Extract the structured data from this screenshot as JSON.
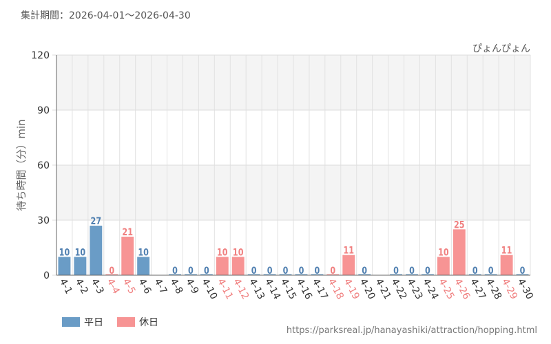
{
  "period_label": "集計期間：2026-04-01～2026-04-30",
  "source_url": "https://parksreal.jp/hanayashiki/attraction/hopping.html",
  "legend": [
    {
      "label": "平日",
      "color": "#6a9cc6"
    },
    {
      "label": "休日",
      "color": "#f79494"
    }
  ],
  "chart_data": {
    "type": "bar",
    "title": "ぴょんぴょん",
    "ylabel": "待ち時間（分）min",
    "xlabel": "",
    "ylim": [
      0,
      120
    ],
    "yticks": [
      0,
      30,
      60,
      90,
      120
    ],
    "grid": true,
    "legend_position": "bottom-left",
    "categories": [
      "4-1",
      "4-2",
      "4-3",
      "4-4",
      "4-5",
      "4-6",
      "4-7",
      "4-8",
      "4-9",
      "4-10",
      "4-11",
      "4-12",
      "4-13",
      "4-14",
      "4-15",
      "4-16",
      "4-17",
      "4-18",
      "4-19",
      "4-20",
      "4-21",
      "4-22",
      "4-23",
      "4-24",
      "4-25",
      "4-26",
      "4-27",
      "4-28",
      "4-29",
      "4-30"
    ],
    "values": [
      10,
      10,
      27,
      0,
      21,
      10,
      null,
      0,
      0,
      0,
      10,
      10,
      0,
      0,
      0,
      0,
      0,
      0,
      11,
      0,
      null,
      0,
      0,
      0,
      10,
      25,
      0,
      0,
      11,
      0
    ],
    "day_type": [
      "平日",
      "平日",
      "平日",
      "休日",
      "休日",
      "平日",
      "平日",
      "平日",
      "平日",
      "平日",
      "休日",
      "休日",
      "平日",
      "平日",
      "平日",
      "平日",
      "平日",
      "休日",
      "休日",
      "平日",
      "平日",
      "平日",
      "平日",
      "平日",
      "休日",
      "休日",
      "平日",
      "平日",
      "休日",
      "平日"
    ]
  }
}
